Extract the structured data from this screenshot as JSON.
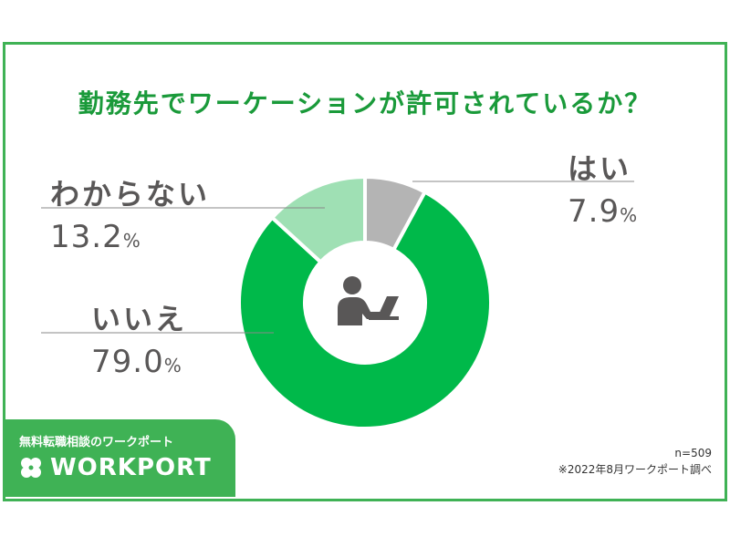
{
  "chart_data": {
    "type": "pie",
    "donut": true,
    "title": "勤務先でワーケーションが許可されているか？",
    "slices": [
      {
        "label": "はい",
        "value": 7.9,
        "color": "#b4b4b4"
      },
      {
        "label": "いいえ",
        "value": 79.0,
        "color": "#00b94a"
      },
      {
        "label": "わからない",
        "value": 13.2,
        "color": "#9fe0b4"
      }
    ],
    "unit": "%",
    "center_icon": "person-laptop-icon"
  },
  "labels": {
    "yes": {
      "name": "はい",
      "value": "7.9",
      "unit": "%"
    },
    "no": {
      "name": "いいえ",
      "value": "79.0",
      "unit": "%"
    },
    "unknown": {
      "name": "わからない",
      "value": "13.2",
      "unit": "%"
    }
  },
  "brand": {
    "tagline": "無料転職相談のワークポート",
    "logo_text": "WORKPORT",
    "color": "#3fb255"
  },
  "source": {
    "sample": "n=509",
    "note": "※2022年8月ワークポート調べ"
  }
}
